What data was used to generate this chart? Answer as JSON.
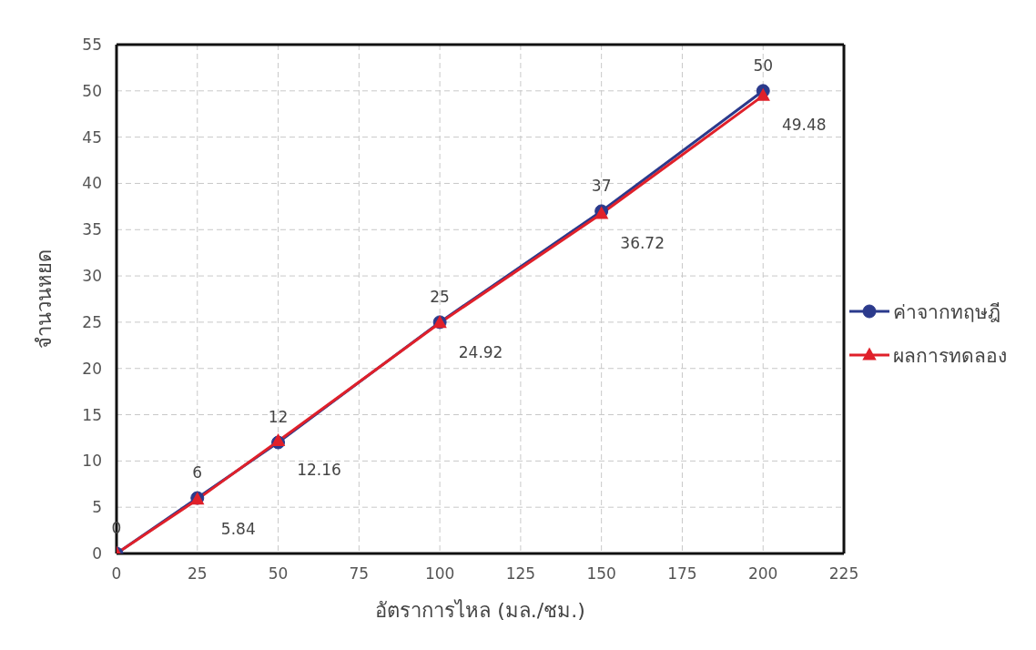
{
  "chart_data": {
    "type": "line",
    "xlabel": "อัตราการไหล (มล./ชม.)",
    "ylabel": "จำนวนหยด",
    "x": [
      0,
      25,
      50,
      100,
      150,
      200
    ],
    "series": [
      {
        "name": "ค่าจากทฤษฎี",
        "color": "#2b3a8c",
        "marker": "circle",
        "values": [
          0,
          6,
          12,
          25,
          37,
          50
        ],
        "value_labels": [
          "0",
          "6",
          "12",
          "25",
          "37",
          "50"
        ]
      },
      {
        "name": "ผลการทดลอง",
        "color": "#e0202a",
        "marker": "triangle",
        "values": [
          0,
          5.84,
          12.16,
          24.92,
          36.72,
          49.48
        ],
        "value_labels": [
          null,
          "5.84",
          "12.16",
          "24.92",
          "36.72",
          "49.48"
        ]
      }
    ],
    "xlim": [
      0,
      225
    ],
    "xticks": [
      0,
      25,
      50,
      75,
      100,
      125,
      150,
      175,
      200,
      225
    ],
    "ylim": [
      0,
      55
    ],
    "yticks": [
      0,
      5,
      10,
      15,
      20,
      25,
      30,
      35,
      40,
      45,
      50,
      55
    ],
    "grid": true,
    "legend": "right",
    "line_style": "solid"
  }
}
